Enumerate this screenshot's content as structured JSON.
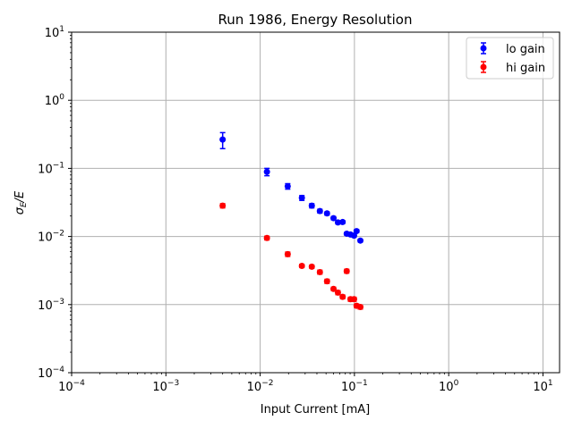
{
  "chart_data": {
    "type": "scatter",
    "title": "Run 1986, Energy Resolution",
    "xlabel": "Input Current [mA]",
    "ylabel": "σ_E/E",
    "ylabel_main": "σ",
    "ylabel_sub": "E",
    "ylabel_tail": "/E",
    "xscale": "log",
    "yscale": "log",
    "xlim": [
      0.0001,
      15
    ],
    "ylim": [
      0.0001,
      10
    ],
    "grid": true,
    "legend_position": "top-right",
    "x_ticks": [
      {
        "base": "10",
        "exp": "−4",
        "value": 0.0001
      },
      {
        "base": "10",
        "exp": "−3",
        "value": 0.001
      },
      {
        "base": "10",
        "exp": "−2",
        "value": 0.01
      },
      {
        "base": "10",
        "exp": "−1",
        "value": 0.1
      },
      {
        "base": "10",
        "exp": "0",
        "value": 1
      },
      {
        "base": "10",
        "exp": "1",
        "value": 10
      }
    ],
    "y_ticks": [
      {
        "base": "10",
        "exp": "−4",
        "value": 0.0001
      },
      {
        "base": "10",
        "exp": "−3",
        "value": 0.001
      },
      {
        "base": "10",
        "exp": "−2",
        "value": 0.01
      },
      {
        "base": "10",
        "exp": "−1",
        "value": 0.1
      },
      {
        "base": "10",
        "exp": "0",
        "value": 1
      },
      {
        "base": "10",
        "exp": "1",
        "value": 10
      }
    ],
    "series": [
      {
        "name": "lo gain",
        "color": "#0000ff",
        "x": [
          0.004,
          0.0118,
          0.0196,
          0.0277,
          0.0353,
          0.043,
          0.0512,
          0.06,
          0.0668,
          0.075,
          0.0828,
          0.0908,
          0.0991,
          0.1054,
          0.1156
        ],
        "y": [
          0.265,
          0.089,
          0.0546,
          0.0369,
          0.0283,
          0.0236,
          0.0218,
          0.0186,
          0.0161,
          0.0163,
          0.011,
          0.0107,
          0.0103,
          0.012,
          0.0087
        ],
        "yerr": [
          0.07,
          0.011,
          0.005,
          0.003,
          0.002,
          0.0015,
          0.0012,
          0.001,
          0.0008,
          0.0008,
          0.0005,
          0.0005,
          0.0005,
          0.0006,
          0.0004
        ]
      },
      {
        "name": "hi gain",
        "color": "#ff0000",
        "x": [
          0.004,
          0.0118,
          0.0196,
          0.0277,
          0.0353,
          0.043,
          0.0512,
          0.06,
          0.0668,
          0.075,
          0.0828,
          0.0908,
          0.0991,
          0.1054,
          0.1156
        ],
        "y": [
          0.0283,
          0.0095,
          0.0055,
          0.0037,
          0.0036,
          0.003,
          0.0022,
          0.0017,
          0.0015,
          0.0013,
          0.0031,
          0.0012,
          0.0012,
          0.00096,
          0.00092
        ],
        "yerr": [
          0.002,
          0.0006,
          0.0004,
          0.0002,
          0.0002,
          0.0002,
          0.00015,
          0.0001,
          0.0001,
          8e-05,
          0.0002,
          8e-05,
          8e-05,
          6e-05,
          6e-05
        ]
      }
    ]
  }
}
